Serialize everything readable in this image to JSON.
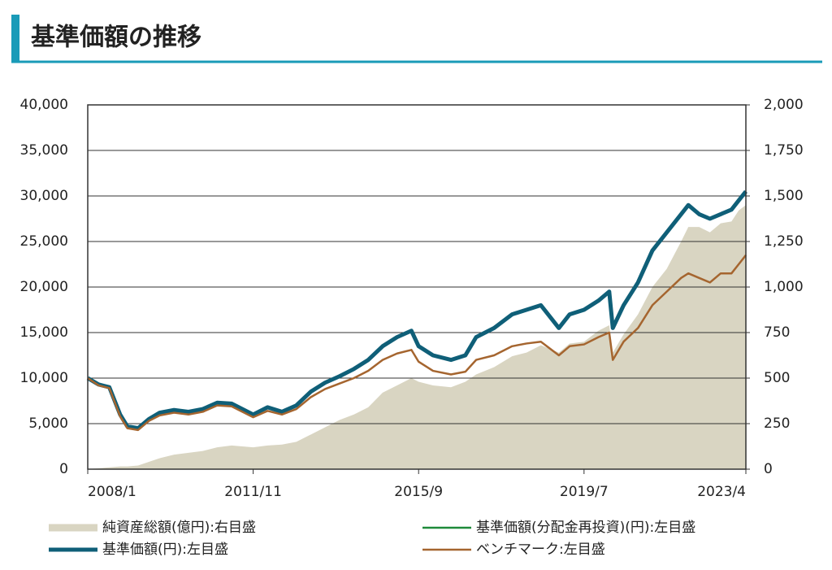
{
  "header": {
    "title": "基準価額の推移"
  },
  "chart_data": {
    "type": "line",
    "x": [
      "2008/1",
      "2008/4",
      "2008/7",
      "2008/10",
      "2008/12",
      "2009/3",
      "2009/6",
      "2009/9",
      "2010/1",
      "2010/5",
      "2010/9",
      "2011/1",
      "2011/5",
      "2011/11",
      "2012/3",
      "2012/7",
      "2012/11",
      "2013/3",
      "2013/7",
      "2013/11",
      "2014/3",
      "2014/7",
      "2014/11",
      "2015/3",
      "2015/7",
      "2015/9",
      "2016/1",
      "2016/6",
      "2016/10",
      "2017/1",
      "2017/6",
      "2017/11",
      "2018/3",
      "2018/7",
      "2018/12",
      "2019/3",
      "2019/7",
      "2019/11",
      "2020/2",
      "2020/3",
      "2020/6",
      "2020/10",
      "2021/2",
      "2021/6",
      "2021/10",
      "2021/12",
      "2022/3",
      "2022/6",
      "2022/9",
      "2022/12",
      "2023/2",
      "2023/4"
    ],
    "series": [
      {
        "name": "純資産総額(億円):右目盛",
        "color": "#d9d5c2",
        "kind": "area",
        "axis": "y2",
        "values": [
          0,
          5,
          10,
          15,
          15,
          20,
          40,
          60,
          80,
          90,
          100,
          120,
          130,
          120,
          130,
          135,
          150,
          190,
          230,
          270,
          300,
          340,
          420,
          460,
          500,
          480,
          460,
          450,
          480,
          520,
          560,
          620,
          640,
          680,
          640,
          690,
          700,
          760,
          790,
          640,
          740,
          850,
          1000,
          1100,
          1250,
          1330,
          1330,
          1300,
          1350,
          1360,
          1420,
          1450
        ]
      },
      {
        "name": "基準価額(分配金再投資)(円):左目盛",
        "color": "#1f8a3a",
        "kind": "line",
        "values": [
          10000,
          9300,
          9000,
          6000,
          4700,
          4500,
          5500,
          6200,
          6500,
          6300,
          6600,
          7300,
          7200,
          6000,
          6800,
          6300,
          7000,
          8500,
          9500,
          10200,
          11000,
          12000,
          13500,
          14500,
          15200,
          13500,
          12500,
          12000,
          12500,
          14500,
          15500,
          17000,
          17500,
          18000,
          15500,
          17000,
          17500,
          18500,
          19500,
          15500,
          18000,
          20500,
          24000,
          26000,
          28000,
          29000,
          28000,
          27500,
          28000,
          28500,
          29500,
          30500
        ]
      },
      {
        "name": "基準価額(円):左目盛",
        "color": "#0f5f78",
        "kind": "thick",
        "values": [
          10000,
          9300,
          9000,
          6000,
          4700,
          4500,
          5500,
          6200,
          6500,
          6300,
          6600,
          7300,
          7200,
          6000,
          6800,
          6300,
          7000,
          8500,
          9500,
          10200,
          11000,
          12000,
          13500,
          14500,
          15200,
          13500,
          12500,
          12000,
          12500,
          14500,
          15500,
          17000,
          17500,
          18000,
          15500,
          17000,
          17500,
          18500,
          19500,
          15500,
          18000,
          20500,
          24000,
          26000,
          28000,
          29000,
          28000,
          27500,
          28000,
          28500,
          29500,
          30500
        ]
      },
      {
        "name": "ベンチマーク:左目盛",
        "color": "#a5652f",
        "kind": "line",
        "values": [
          10000,
          9200,
          8900,
          5800,
          4500,
          4300,
          5300,
          5900,
          6200,
          6000,
          6300,
          7000,
          6900,
          5700,
          6400,
          6000,
          6600,
          7900,
          8800,
          9400,
          10000,
          10800,
          12000,
          12700,
          13100,
          11800,
          10800,
          10400,
          10700,
          12000,
          12500,
          13500,
          13800,
          14000,
          12500,
          13500,
          13700,
          14500,
          15000,
          12000,
          14000,
          15500,
          18000,
          19500,
          21000,
          21500,
          21000,
          20500,
          21500,
          21500,
          22500,
          23500
        ]
      }
    ],
    "xticks": [
      "2008/1",
      "2011/11",
      "2015/9",
      "2019/7",
      "2023/4"
    ],
    "ylim": [
      0,
      40000
    ],
    "yticks": [
      0,
      {
        "value": 5000,
        "label": "5,000"
      },
      {
        "value": 10000,
        "label": "10,000"
      },
      {
        "value": 15000,
        "label": "15,000"
      },
      {
        "value": 20000,
        "label": "20,000"
      },
      {
        "value": 25000,
        "label": "25,000"
      },
      {
        "value": 30000,
        "label": "30,000"
      },
      {
        "value": 35000,
        "label": "35,000"
      },
      {
        "value": 40000,
        "label": "40,000"
      }
    ],
    "y2lim": [
      0,
      2000
    ],
    "y2ticks": [
      0,
      250,
      500,
      750,
      {
        "value": 1000,
        "label": "1,000"
      },
      {
        "value": 1250,
        "label": "1,250"
      },
      {
        "value": 1500,
        "label": "1,500"
      },
      {
        "value": 1750,
        "label": "1,750"
      },
      {
        "value": 2000,
        "label": "2,000"
      }
    ],
    "grid": true
  }
}
